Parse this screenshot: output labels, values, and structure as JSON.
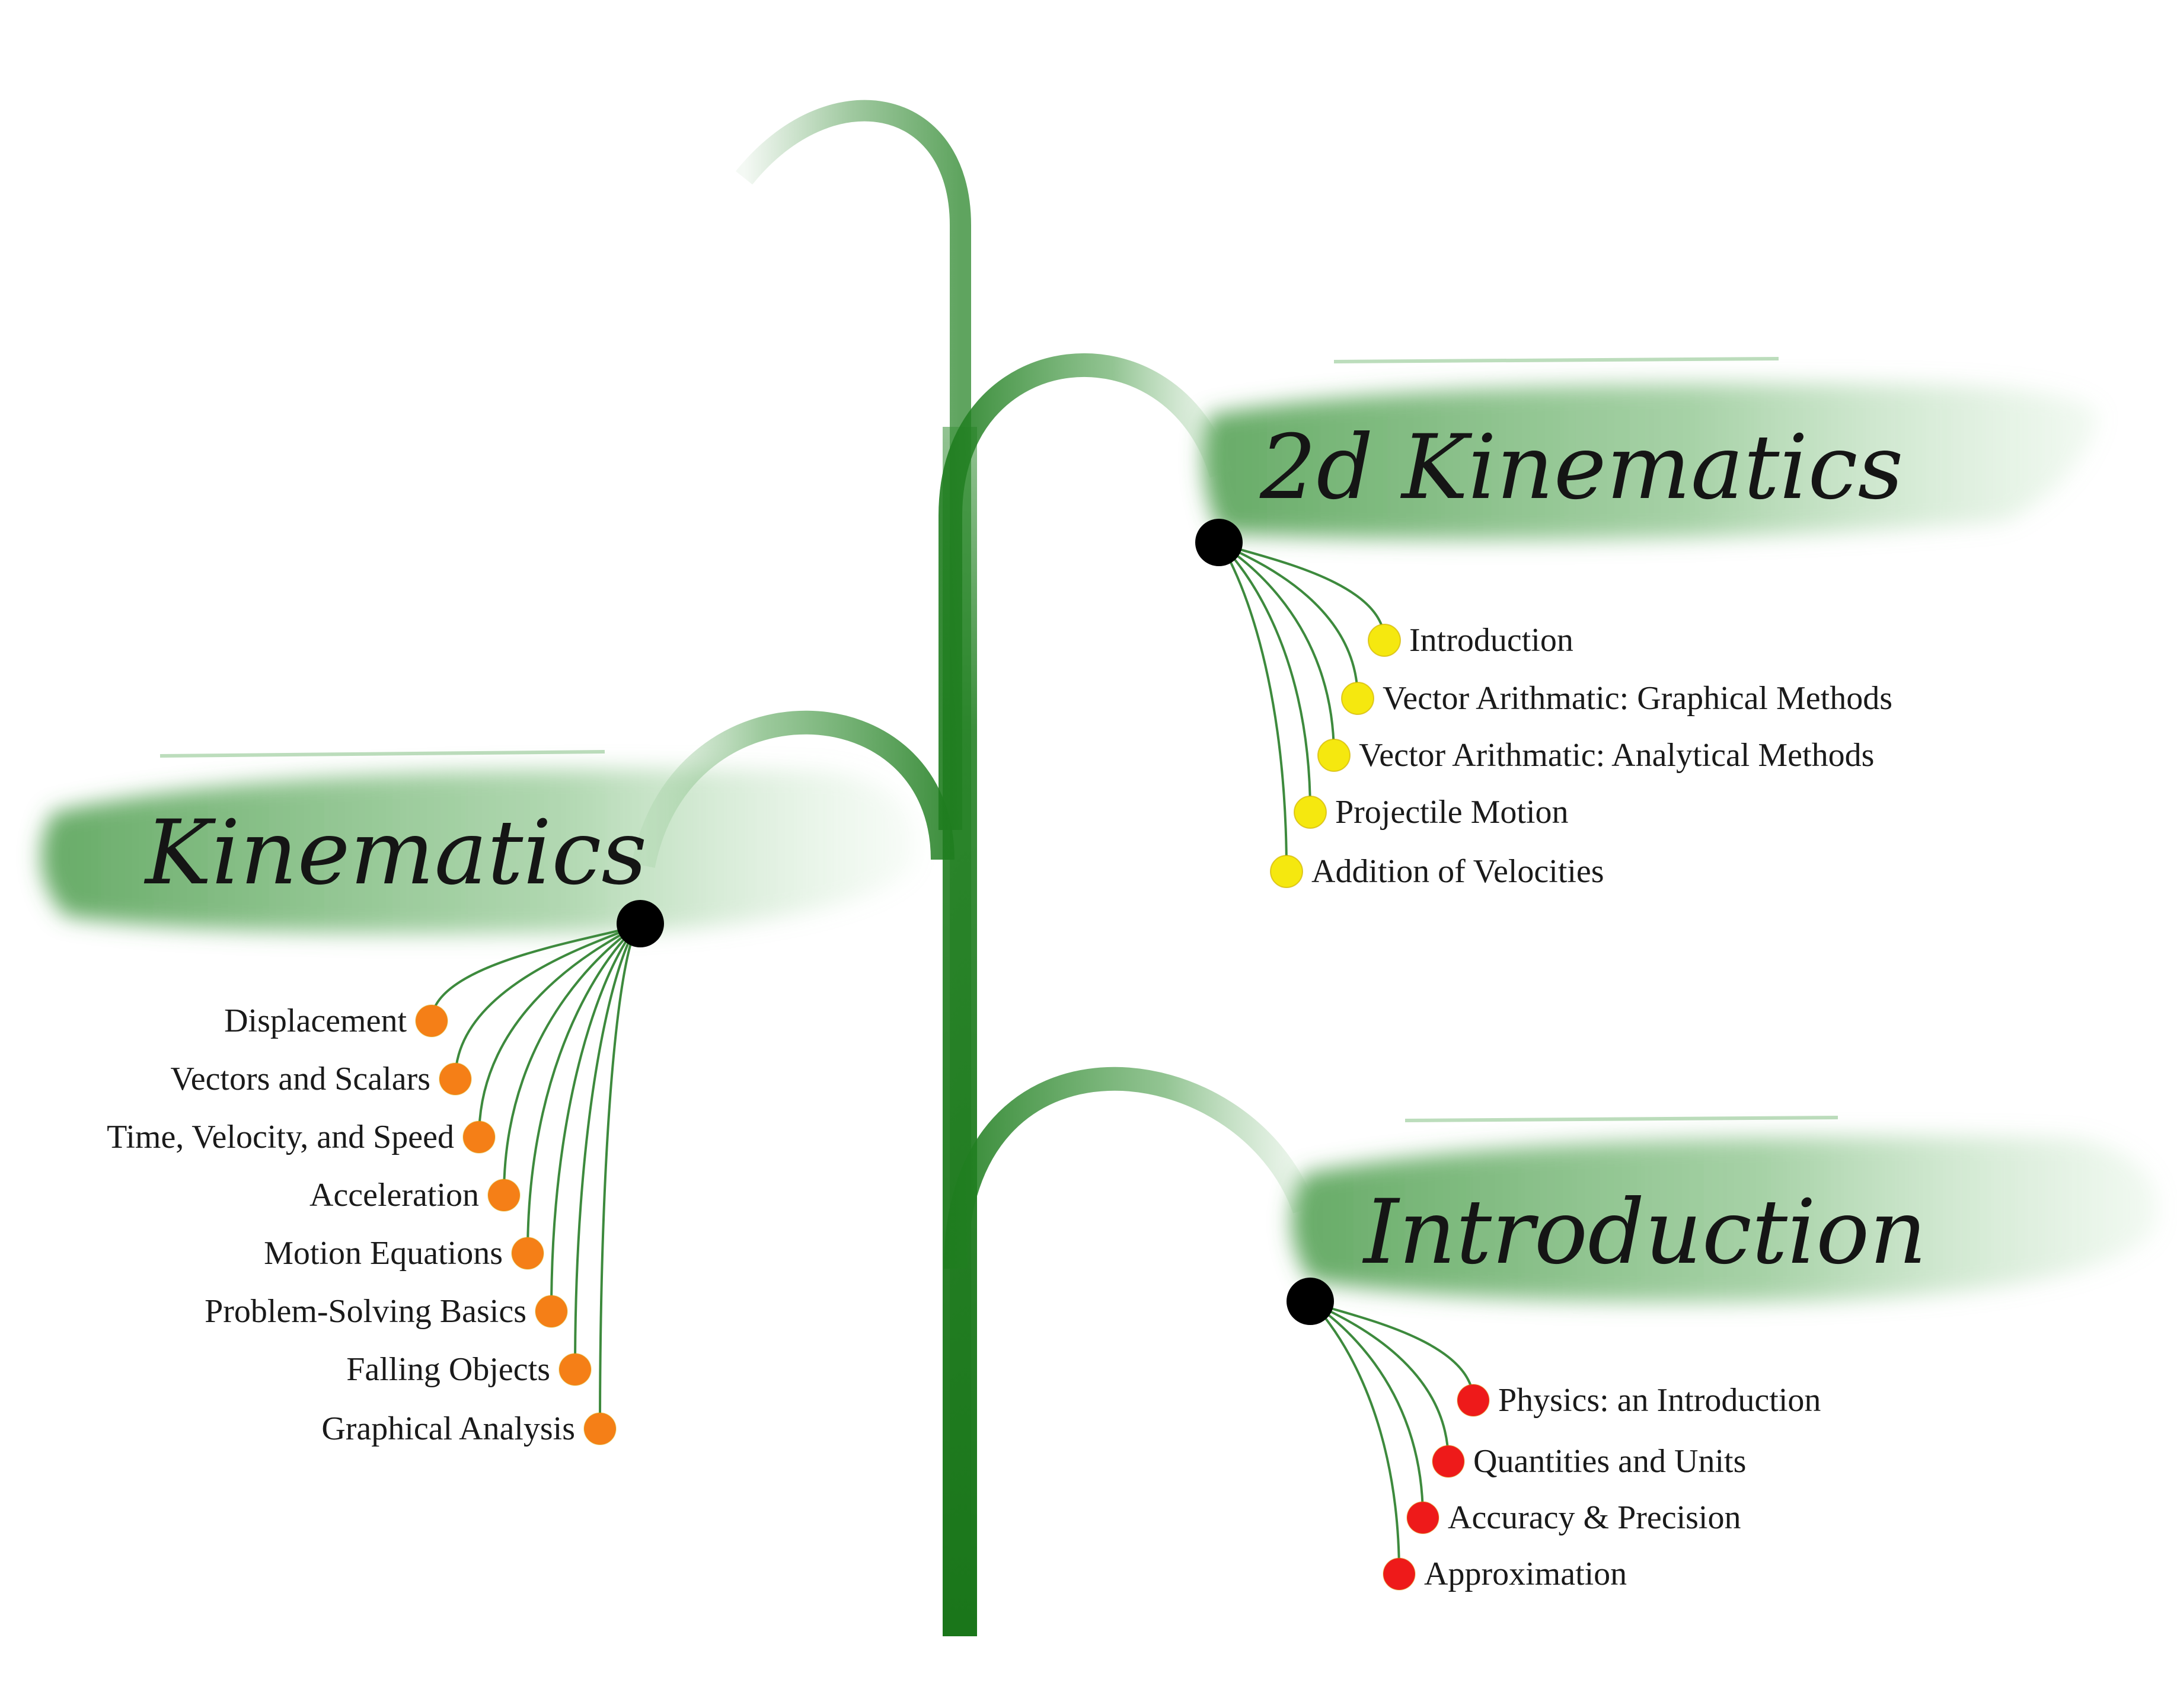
{
  "branches": [
    {
      "title": "2d Kinematics",
      "dot_color": "#f5e80f",
      "topics": [
        "Introduction",
        "Vector Arithmatic: Graphical Methods",
        "Vector  Arithmatic: Analytical Methods",
        "Projectile Motion",
        "Addition of Velocities"
      ]
    },
    {
      "title": "Kinematics",
      "dot_color": "#f57f17",
      "topics": [
        "Displacement",
        "Vectors and Scalars",
        "Time, Velocity, and Speed",
        "Acceleration",
        "Motion Equations",
        "Problem-Solving Basics",
        "Falling Objects",
        "Graphical Analysis"
      ]
    },
    {
      "title": "Introduction",
      "dot_color": "#ee1a1a",
      "topics": [
        "Physics: an Introduction",
        "Quantities and Units",
        "Accuracy & Precision",
        "Approximation"
      ]
    }
  ],
  "colors": {
    "stem": "#1f7d1f",
    "wash": "#5aa85a",
    "hub": "#000000",
    "connector": "#3d8a3d"
  }
}
